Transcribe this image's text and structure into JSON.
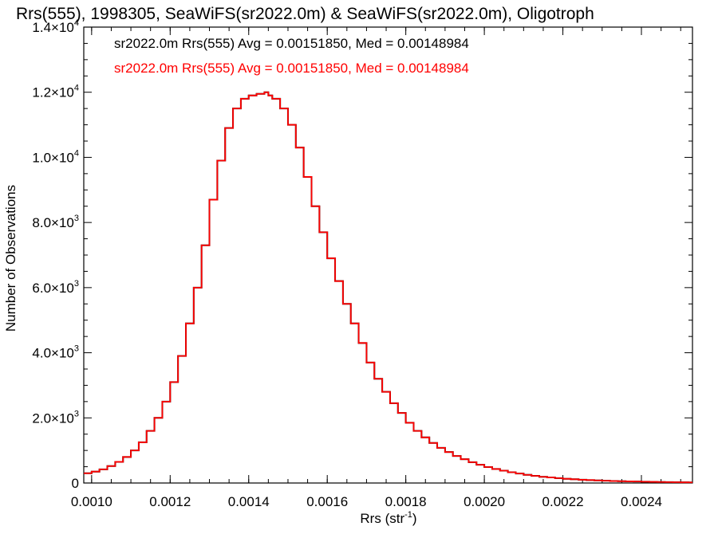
{
  "chart_data": {
    "type": "histogram",
    "title": "Rrs(555), 1998305, SeaWiFS(sr2022.0m) & SeaWiFS(sr2022.0m), Oligotroph",
    "xlabel": {
      "base": "Rrs (str",
      "sup": "-1",
      "close": ")"
    },
    "ylabel": "Number of Observations",
    "xlim": [
      0.00098,
      0.00253
    ],
    "ylim": [
      0,
      14000
    ],
    "x_ticks": [
      {
        "value": 0.001,
        "label": "0.0010"
      },
      {
        "value": 0.0012,
        "label": "0.0012"
      },
      {
        "value": 0.0014,
        "label": "0.0014"
      },
      {
        "value": 0.0016,
        "label": "0.0016"
      },
      {
        "value": 0.0018,
        "label": "0.0018"
      },
      {
        "value": 0.002,
        "label": "0.0020"
      },
      {
        "value": 0.0022,
        "label": "0.0022"
      },
      {
        "value": 0.0024,
        "label": "0.0024"
      }
    ],
    "y_ticks": [
      {
        "value": 0,
        "mant": "0",
        "exp": ""
      },
      {
        "value": 2000,
        "mant": "2.0",
        "exp": "3"
      },
      {
        "value": 4000,
        "mant": "4.0",
        "exp": "3"
      },
      {
        "value": 6000,
        "mant": "6.0",
        "exp": "3"
      },
      {
        "value": 8000,
        "mant": "8.0",
        "exp": "3"
      },
      {
        "value": 10000,
        "mant": "1.0",
        "exp": "4"
      },
      {
        "value": 12000,
        "mant": "1.2",
        "exp": "4"
      },
      {
        "value": 14000,
        "mant": "1.4",
        "exp": "4"
      }
    ],
    "annotations": [
      {
        "text": "sr2022.0m Rrs(555) Avg = 0.00151850, Med = 0.00148984",
        "color": "#000000"
      },
      {
        "text": "sr2022.0m Rrs(555) Avg = 0.00151850, Med = 0.00148984",
        "color": "#ff0000"
      }
    ],
    "series": [
      {
        "name": "sr2022.0m",
        "color": "#000000",
        "x": [
          0.00098,
          0.001,
          0.00102,
          0.00104,
          0.00106,
          0.00108,
          0.0011,
          0.00112,
          0.00114,
          0.00116,
          0.00118,
          0.0012,
          0.00122,
          0.00124,
          0.00126,
          0.00128,
          0.0013,
          0.00132,
          0.00134,
          0.00136,
          0.00138,
          0.0014,
          0.00142,
          0.00144,
          0.00145,
          0.00146,
          0.00148,
          0.0015,
          0.00152,
          0.00154,
          0.00156,
          0.00158,
          0.0016,
          0.00162,
          0.00164,
          0.00166,
          0.00168,
          0.0017,
          0.00172,
          0.00174,
          0.00176,
          0.00178,
          0.0018,
          0.00182,
          0.00184,
          0.00186,
          0.00188,
          0.0019,
          0.00192,
          0.00194,
          0.00196,
          0.00198,
          0.002,
          0.00202,
          0.00204,
          0.00206,
          0.00208,
          0.0021,
          0.00212,
          0.00214,
          0.00216,
          0.00218,
          0.0022,
          0.00222,
          0.00224,
          0.00226,
          0.00228,
          0.0023,
          0.00232,
          0.00234,
          0.00236,
          0.00238,
          0.0024,
          0.00242,
          0.00244,
          0.00246,
          0.00248,
          0.0025,
          0.00252
        ],
        "y": [
          300,
          350,
          420,
          520,
          650,
          800,
          1000,
          1250,
          1600,
          2000,
          2500,
          3100,
          3900,
          4900,
          6000,
          7300,
          8700,
          9900,
          10900,
          11500,
          11800,
          11900,
          11950,
          12000,
          11900,
          11800,
          11500,
          11000,
          10300,
          9400,
          8500,
          7700,
          6900,
          6200,
          5500,
          4900,
          4300,
          3700,
          3200,
          2800,
          2450,
          2150,
          1850,
          1600,
          1400,
          1230,
          1080,
          950,
          830,
          730,
          640,
          560,
          490,
          430,
          380,
          330,
          290,
          250,
          220,
          190,
          170,
          150,
          130,
          115,
          100,
          90,
          80,
          70,
          60,
          55,
          50,
          45,
          40,
          35,
          30,
          28,
          25,
          20,
          18
        ]
      },
      {
        "name": "sr2022.0m",
        "color": "#ff0000",
        "x": [
          0.00098,
          0.001,
          0.00102,
          0.00104,
          0.00106,
          0.00108,
          0.0011,
          0.00112,
          0.00114,
          0.00116,
          0.00118,
          0.0012,
          0.00122,
          0.00124,
          0.00126,
          0.00128,
          0.0013,
          0.00132,
          0.00134,
          0.00136,
          0.00138,
          0.0014,
          0.00142,
          0.00144,
          0.00145,
          0.00146,
          0.00148,
          0.0015,
          0.00152,
          0.00154,
          0.00156,
          0.00158,
          0.0016,
          0.00162,
          0.00164,
          0.00166,
          0.00168,
          0.0017,
          0.00172,
          0.00174,
          0.00176,
          0.00178,
          0.0018,
          0.00182,
          0.00184,
          0.00186,
          0.00188,
          0.0019,
          0.00192,
          0.00194,
          0.00196,
          0.00198,
          0.002,
          0.00202,
          0.00204,
          0.00206,
          0.00208,
          0.0021,
          0.00212,
          0.00214,
          0.00216,
          0.00218,
          0.0022,
          0.00222,
          0.00224,
          0.00226,
          0.00228,
          0.0023,
          0.00232,
          0.00234,
          0.00236,
          0.00238,
          0.0024,
          0.00242,
          0.00244,
          0.00246,
          0.00248,
          0.0025,
          0.00252
        ],
        "y": [
          300,
          350,
          420,
          520,
          650,
          800,
          1000,
          1250,
          1600,
          2000,
          2500,
          3100,
          3900,
          4900,
          6000,
          7300,
          8700,
          9900,
          10900,
          11500,
          11800,
          11900,
          11950,
          12000,
          11900,
          11800,
          11500,
          11000,
          10300,
          9400,
          8500,
          7700,
          6900,
          6200,
          5500,
          4900,
          4300,
          3700,
          3200,
          2800,
          2450,
          2150,
          1850,
          1600,
          1400,
          1230,
          1080,
          950,
          830,
          730,
          640,
          560,
          490,
          430,
          380,
          330,
          290,
          250,
          220,
          190,
          170,
          150,
          130,
          115,
          100,
          90,
          80,
          70,
          60,
          55,
          50,
          45,
          40,
          35,
          30,
          28,
          25,
          20,
          18
        ]
      }
    ]
  }
}
